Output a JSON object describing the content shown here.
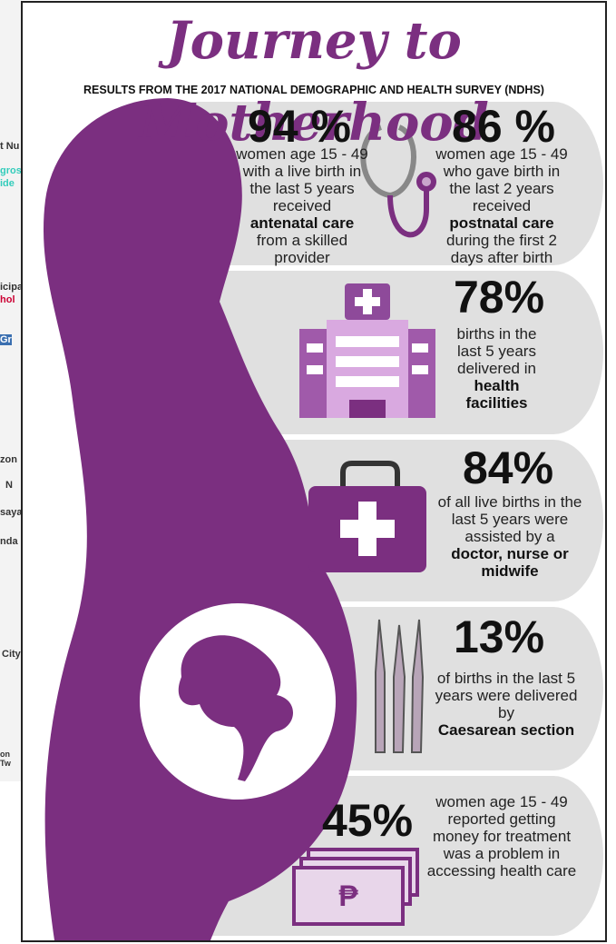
{
  "header": {
    "title": "Journey to Motherhood",
    "subtitle": "RESULTS FROM THE 2017 NATIONAL DEMOGRAPHIC AND HEALTH SURVEY (NDHS)"
  },
  "stats": [
    {
      "value": "94 %",
      "text": "women age 15 - 49 with a live birth in the last 5 years received",
      "bold": "antenatal care",
      "after": "from a skilled provider"
    },
    {
      "value": "86 %",
      "text": "women age 15 - 49 who gave birth in the last 2 years received",
      "bold": "postnatal care",
      "after": "during the first 2 days after birth"
    },
    {
      "value": "78%",
      "text": "births in the last 5 years delivered in",
      "bold": "health facilities"
    },
    {
      "value": "84%",
      "text": "of all live births in the last 5 years were assisted by a",
      "bold": "doctor, nurse or midwife"
    },
    {
      "value": "13%",
      "text": "of births in the last 5 years were delivered by",
      "bold": "Caesarean section"
    },
    {
      "value": "45%",
      "text": "women age 15 - 49 reported getting money for treatment was a problem in accessing health care"
    }
  ],
  "background_page": {
    "fragments": [
      "t Nu",
      "gros",
      "ide",
      "icipa",
      "hol",
      "Gr",
      "zon",
      "N",
      "saya",
      "nda",
      "City",
      "on Tw"
    ]
  }
}
